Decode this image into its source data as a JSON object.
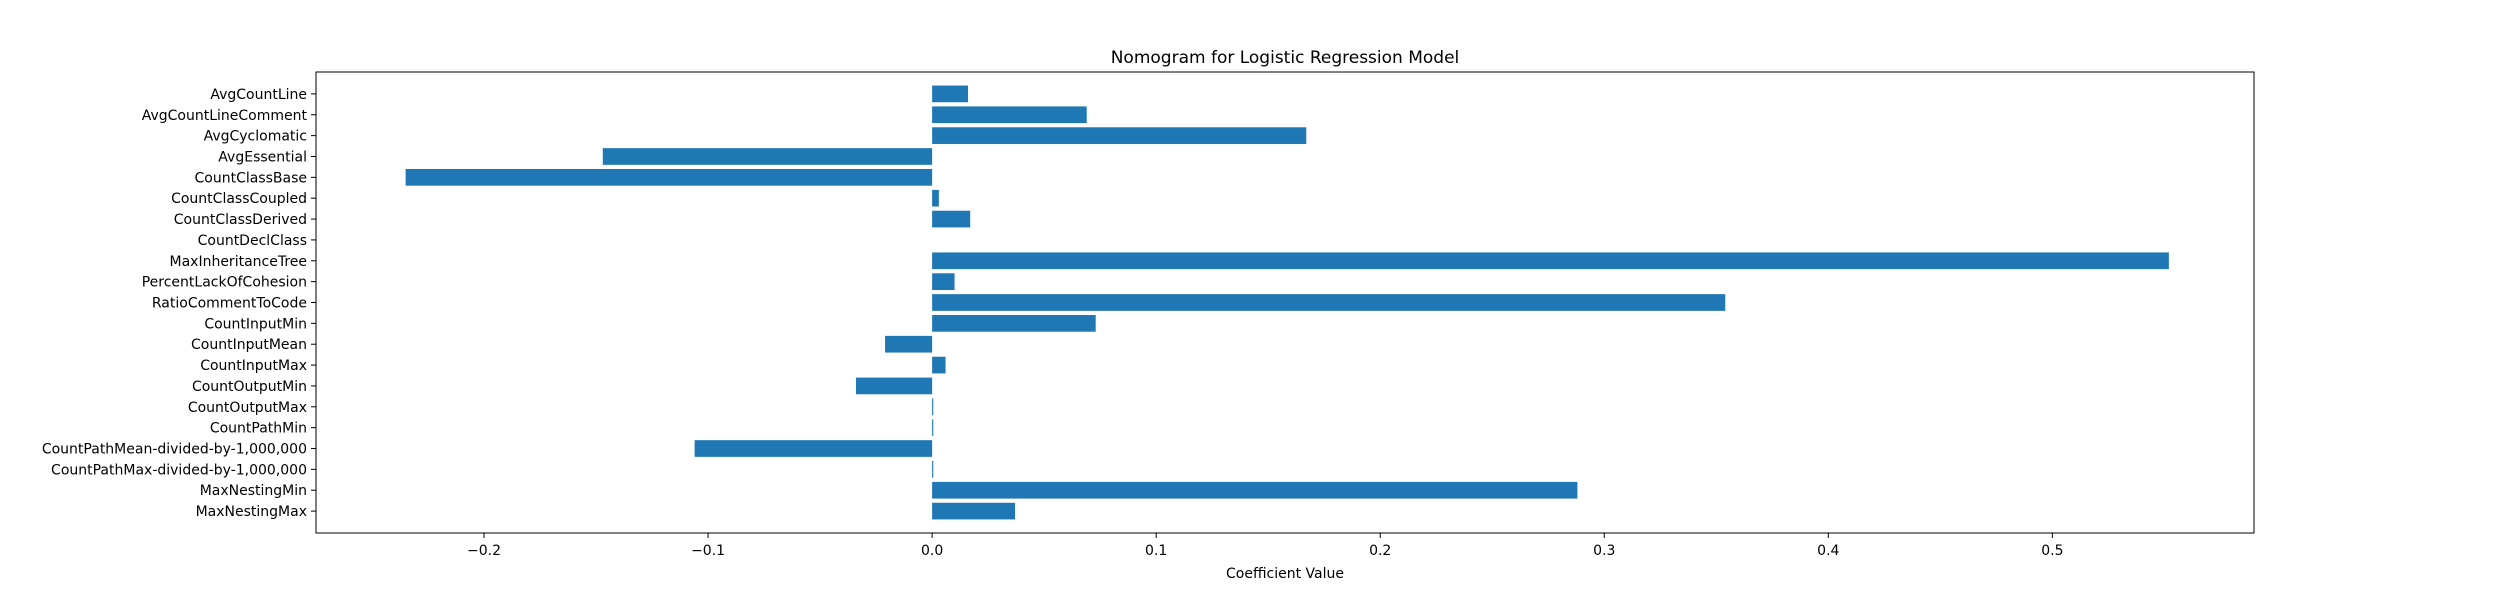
{
  "chart_data": {
    "type": "bar",
    "orientation": "horizontal",
    "title": "Nomogram for Logistic Regression Model",
    "xlabel": "Coefficient Value",
    "ylabel": "",
    "xlim": [
      -0.275,
      0.59
    ],
    "xticks": [
      -0.2,
      -0.1,
      0.0,
      0.1,
      0.2,
      0.3,
      0.4,
      0.5
    ],
    "xtick_labels": [
      "−0.2",
      "−0.1",
      "0.0",
      "0.1",
      "0.2",
      "0.3",
      "0.4",
      "0.5"
    ],
    "grid": false,
    "bar_color": "#1f77b4",
    "categories": [
      "AvgCountLine",
      "AvgCountLineComment",
      "AvgCyclomatic",
      "AvgEssential",
      "CountClassBase",
      "CountClassCoupled",
      "CountClassDerived",
      "CountDeclClass",
      "MaxInheritanceTree",
      "PercentLackOfCohesion",
      "RatioCommentToCode",
      "CountInputMin",
      "CountInputMean",
      "CountInputMax",
      "CountOutputMin",
      "CountOutputMax",
      "CountPathMin",
      "CountPathMean-divided-by-1,000,000",
      "CountPathMax-divided-by-1,000,000",
      "MaxNestingMin",
      "MaxNestingMax"
    ],
    "values": [
      0.016,
      0.069,
      0.167,
      -0.147,
      -0.235,
      0.003,
      0.017,
      0.0,
      0.552,
      0.01,
      0.354,
      0.073,
      -0.021,
      0.006,
      -0.034,
      0.0005,
      0.0005,
      -0.106,
      0.0005,
      0.288,
      0.037
    ]
  }
}
